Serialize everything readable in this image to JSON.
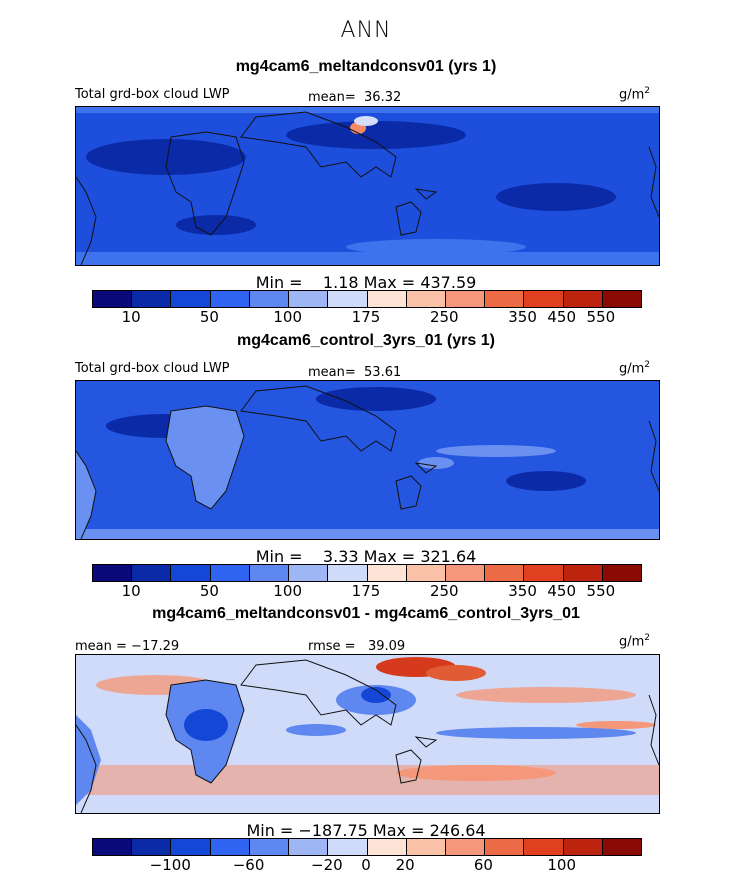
{
  "figure": {
    "season": "ANN"
  },
  "chart_data": [
    {
      "type": "heatmap",
      "title": "mg4cam6_meltandconsv01 (yrs 1)",
      "variable": "Total grd-box cloud LWP",
      "units": "g/m",
      "units_sup": "2",
      "mean_label": "mean=",
      "mean_value": "36.32",
      "min_label": "Min =",
      "min_value": "1.18",
      "max_label": "Max =",
      "max_value": "437.59",
      "colorbar_ticks": [
        "10",
        "50",
        "100",
        "175",
        "250",
        "350",
        "450",
        "550"
      ]
    },
    {
      "type": "heatmap",
      "title": "mg4cam6_control_3yrs_01 (yrs 1)",
      "variable": "Total grd-box cloud LWP",
      "units": "g/m",
      "units_sup": "2",
      "mean_label": "mean=",
      "mean_value": "53.61",
      "min_label": "Min =",
      "min_value": "3.33",
      "max_label": "Max =",
      "max_value": "321.64",
      "colorbar_ticks": [
        "10",
        "50",
        "100",
        "175",
        "250",
        "350",
        "450",
        "550"
      ]
    },
    {
      "type": "heatmap",
      "title": "mg4cam6_meltandconsv01 - mg4cam6_control_3yrs_01",
      "units": "g/m",
      "units_sup": "2",
      "mean_label": "mean =",
      "mean_value": "-17.29",
      "rmse_label": "rmse =",
      "rmse_value": "39.09",
      "min_label": "Min =",
      "min_value": "-187.75",
      "max_label": "Max =",
      "max_value": "246.64",
      "colorbar_ticks": [
        "-100",
        "-60",
        "-20",
        "0",
        "20",
        "60",
        "100"
      ]
    }
  ],
  "colors": {
    "colorbar": [
      "#0a0a7a",
      "#0b2aa8",
      "#1547d6",
      "#2f65f0",
      "#5f87f0",
      "#9fb6f5",
      "#cfdbf9",
      "#fde3d6",
      "#f9c2a8",
      "#f4977a",
      "#ed6a47",
      "#e03f20",
      "#bd2410",
      "#8a0a06"
    ],
    "map_a": {
      "ocean": "#1d4fdc",
      "dark": "#0b2aa8",
      "light": "#3f73ee",
      "coast": "#111111"
    },
    "map_b": {
      "ocean": "#2456e0",
      "dark": "#0b2aa8",
      "light": "#6a90f1",
      "coast": "#111111"
    },
    "map_c": {
      "ocean": "#cfdbf9",
      "neg": "#5f87f0",
      "pos": "#f4977a",
      "coast": "#111111"
    }
  }
}
